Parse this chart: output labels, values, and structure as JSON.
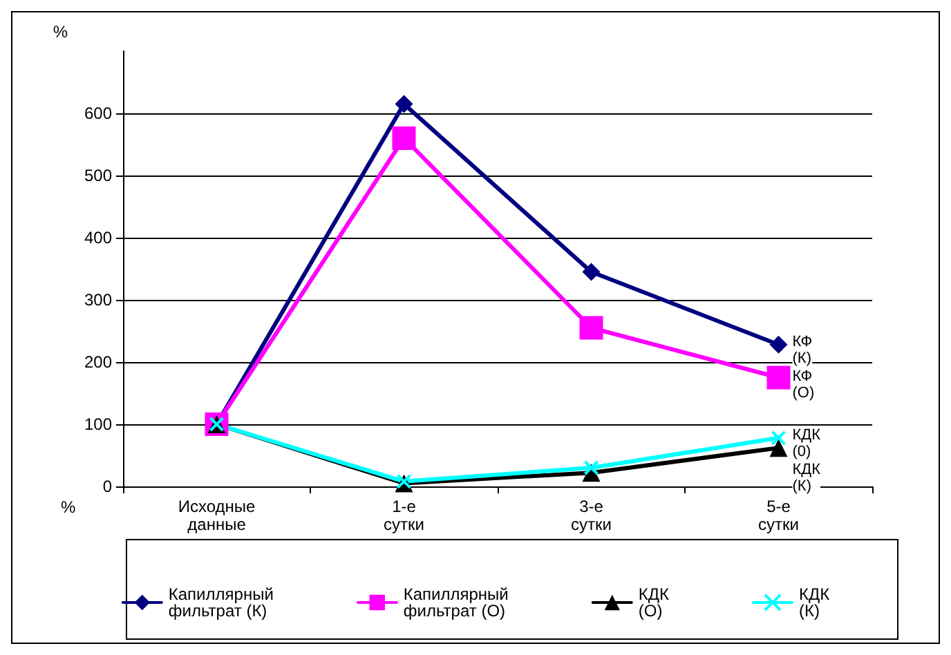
{
  "chart_data": {
    "type": "line",
    "ylabel": "%",
    "categories": [
      "Исходные\nданные",
      "1-е\nсутки",
      "3-е\nсутки",
      "5-е\nсутки"
    ],
    "series": [
      {
        "name": "Капиллярный\nфильтрат (К)",
        "color": "#000080",
        "marker": "diamond",
        "values": [
          100,
          615,
          345,
          228
        ]
      },
      {
        "name": "Капиллярный\nфильтрат (О)",
        "color": "#ff00ff",
        "marker": "square",
        "values": [
          100,
          560,
          255,
          175
        ]
      },
      {
        "name": "КДК\n(О)",
        "color": "#000000",
        "marker": "triangle",
        "values": [
          100,
          5,
          22,
          62
        ]
      },
      {
        "name": "КДК\n(К)",
        "color": "#00ffff",
        "marker": "cross",
        "values": [
          100,
          8,
          30,
          78
        ]
      }
    ],
    "ylim": [
      0,
      700
    ],
    "yticks": [
      0,
      100,
      200,
      300,
      400,
      500,
      600
    ],
    "grid": "y",
    "legend": "bottom",
    "annotations": [
      {
        "text": "КФ\n(К)",
        "x": "5-е\nсутки",
        "y": 228
      },
      {
        "text": "КФ\n(О)",
        "x": "5-е\nсутки",
        "y": 175
      },
      {
        "text": "КДК\n(0)",
        "x": "5-е\nсутки",
        "y": 78
      },
      {
        "text": "КДК\n(К)",
        "x": "5-е\nсутки",
        "y": 62
      },
      "%"
    ]
  }
}
